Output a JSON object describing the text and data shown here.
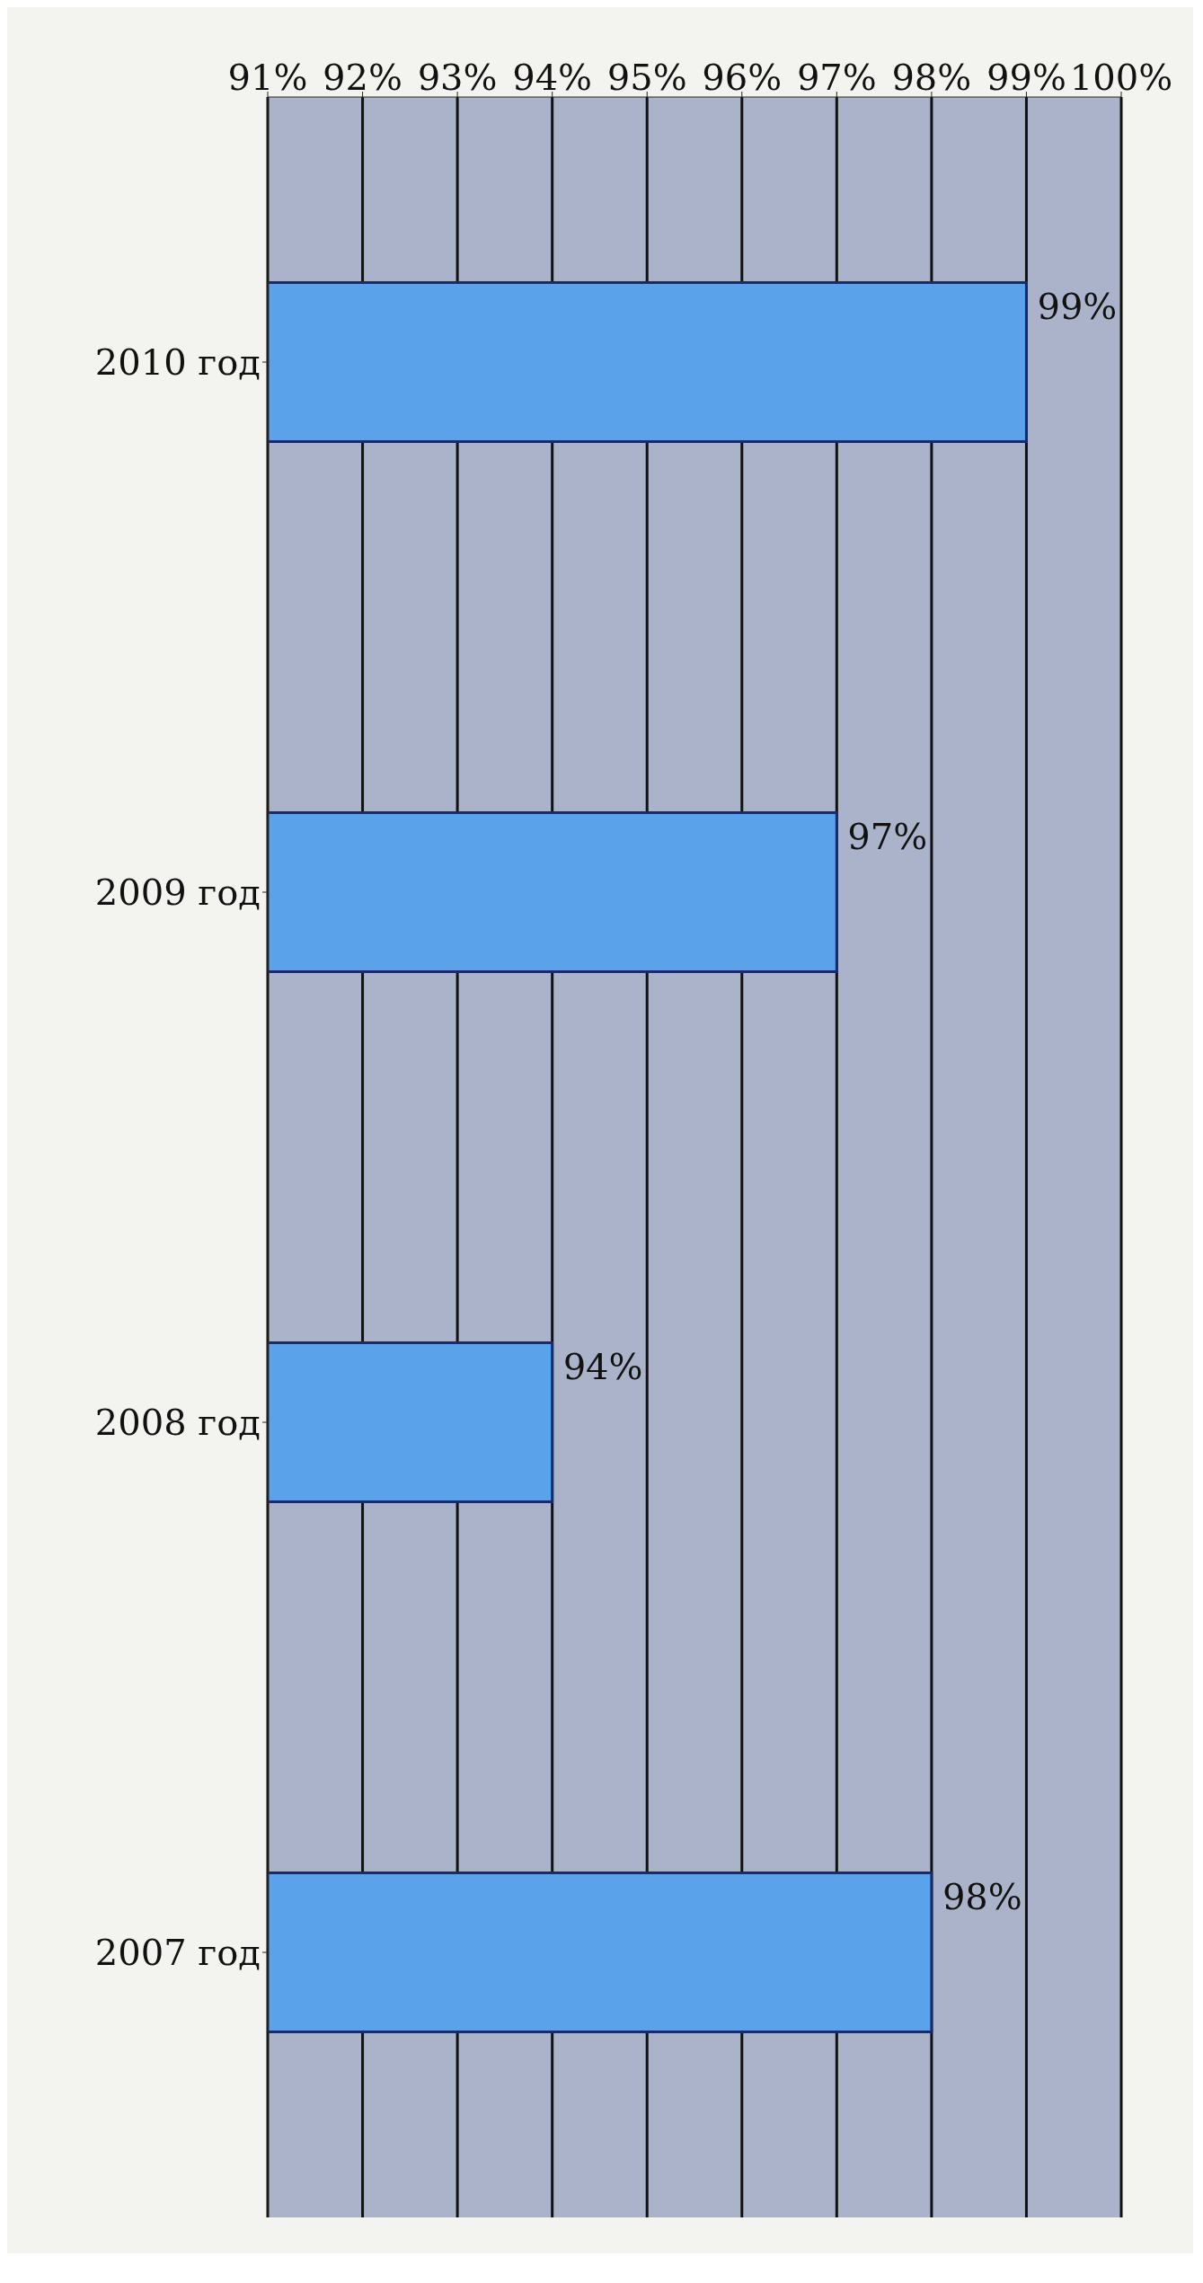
{
  "chart_data": {
    "type": "bar",
    "orientation": "horizontal",
    "categories": [
      "2010 год",
      "2009 год",
      "2008 год",
      "2007 год"
    ],
    "values": [
      99,
      97,
      94,
      98
    ],
    "value_labels": [
      "99%",
      "97%",
      "94%",
      "98%"
    ],
    "color": "#5aa2ea",
    "xlim": [
      91,
      100
    ],
    "xticks": [
      {
        "value": 91,
        "label": "91%"
      },
      {
        "value": 92,
        "label": "92%"
      },
      {
        "value": 93,
        "label": "93%"
      },
      {
        "value": 94,
        "label": "94%"
      },
      {
        "value": 95,
        "label": "95%"
      },
      {
        "value": 96,
        "label": "96%"
      },
      {
        "value": 97,
        "label": "97%"
      },
      {
        "value": 98,
        "label": "98%"
      },
      {
        "value": 99,
        "label": "99%"
      },
      {
        "value": 100,
        "label": "100%"
      }
    ],
    "grid": "x",
    "legend": false
  }
}
